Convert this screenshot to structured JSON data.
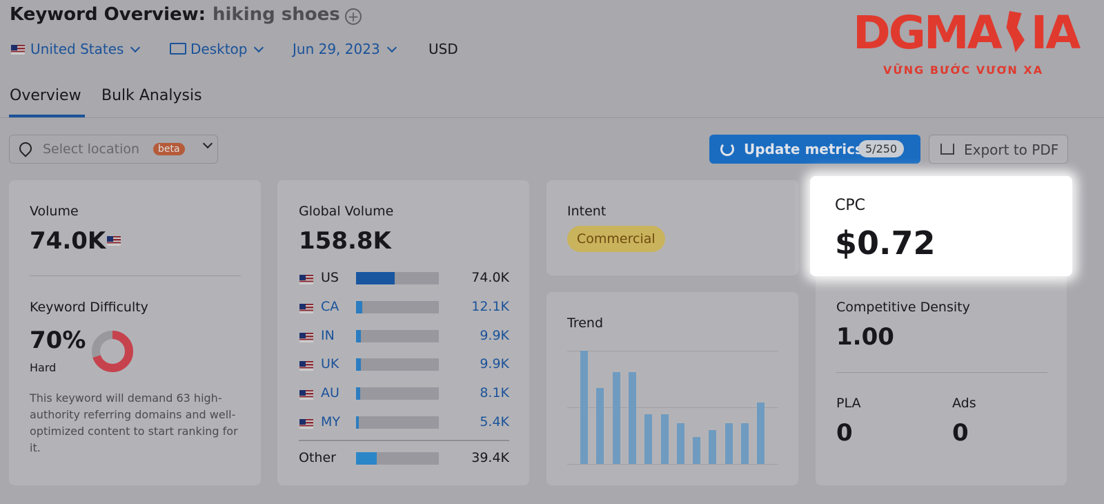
{
  "header": {
    "title": "Keyword Overview:",
    "keyword": "hiking shoes"
  },
  "filters": {
    "country": "United States",
    "device": "Desktop",
    "date": "Jun 29, 2023",
    "currency": "USD"
  },
  "tabs": [
    "Overview",
    "Bulk Analysis"
  ],
  "logo": {
    "text_left": "DGMA",
    "text_right": "IA",
    "tagline": "VỮNG BƯỚC VƯƠN XA"
  },
  "toolbar": {
    "location": "Select location",
    "badge": "beta",
    "update": "Update metrics",
    "quota": "5/250",
    "export": "Export to PDF"
  },
  "volume": {
    "label": "Volume",
    "value": "74.0K"
  },
  "difficulty": {
    "label": "Keyword Difficulty",
    "value": 70,
    "value_label": "70%",
    "level": "Hard",
    "description": "This keyword will demand 63 high-authority referring domains and well-optimized content to start ranking for it."
  },
  "global_volume": {
    "label": "Global Volume",
    "total": 158800,
    "total_label": "158.8K",
    "countries": [
      {
        "code": "US",
        "value": 74000,
        "value_label": "74.0K"
      },
      {
        "code": "CA",
        "value": 12100,
        "value_label": "12.1K"
      },
      {
        "code": "IN",
        "value": 9900,
        "value_label": "9.9K"
      },
      {
        "code": "UK",
        "value": 9900,
        "value_label": "9.9K"
      },
      {
        "code": "AU",
        "value": 8100,
        "value_label": "8.1K"
      },
      {
        "code": "MY",
        "value": 5400,
        "value_label": "5.4K"
      }
    ],
    "other": {
      "code": "Other",
      "value": 39400,
      "value_label": "39.4K"
    }
  },
  "intent": {
    "label": "Intent",
    "value": "Commercial"
  },
  "trend": {
    "label": "Trend",
    "values": [
      100,
      67,
      81,
      81,
      44,
      44,
      36,
      24,
      30,
      36,
      36,
      54
    ],
    "ylim": [
      0,
      100
    ]
  },
  "cpc": {
    "label": "CPC",
    "value": "$0.72"
  },
  "density": {
    "label": "Competitive Density",
    "value": "1.00"
  },
  "pla": {
    "label": "PLA",
    "value": "0"
  },
  "ads": {
    "label": "Ads",
    "value": "0"
  }
}
